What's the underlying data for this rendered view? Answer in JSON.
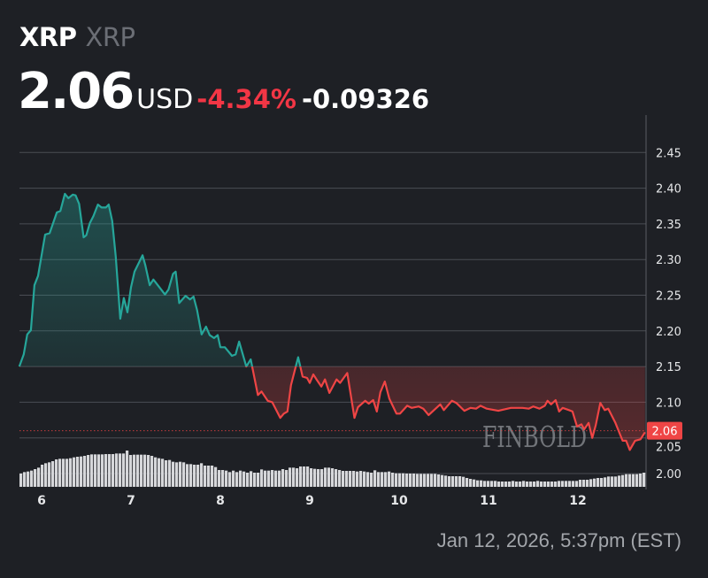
{
  "header": {
    "symbol": "XRP",
    "name": "XRP",
    "price": "2.06",
    "currency": "USD",
    "change_percent": "-4.34%",
    "change_abs": "-0.09326"
  },
  "timestamp": "Jan 12, 2026, 5:37pm (EST)",
  "watermark": "FINBOLD",
  "colors": {
    "background": "#1e2025",
    "up": "#26a69a",
    "down": "#ef4545",
    "grid": "#4a4d54",
    "volume": "#d6d7da"
  },
  "chart_data": {
    "type": "line",
    "title": "",
    "xlabel": "",
    "ylabel": "",
    "x_unit": "day of month (January 2026)",
    "xlim": [
      5.75,
      12.77
    ],
    "ylim": [
      2.0,
      2.47
    ],
    "x_ticks": [
      "6",
      "7",
      "8",
      "9",
      "10",
      "11",
      "12"
    ],
    "y_ticks": [
      "2.00",
      "2.05",
      "2.10",
      "2.15",
      "2.20",
      "2.25",
      "2.30",
      "2.35",
      "2.40",
      "2.45"
    ],
    "grid": true,
    "reference_price": 2.15,
    "current_price_label": "2.06",
    "current_price": 2.06,
    "x": [
      5.75,
      5.8,
      5.84,
      5.88,
      5.92,
      5.96,
      6.04,
      6.09,
      6.17,
      6.21,
      6.26,
      6.3,
      6.35,
      6.38,
      6.42,
      6.47,
      6.5,
      6.54,
      6.58,
      6.63,
      6.67,
      6.72,
      6.75,
      6.79,
      6.83,
      6.88,
      6.92,
      6.96,
      7.0,
      7.04,
      7.13,
      7.16,
      7.21,
      7.25,
      7.3,
      7.38,
      7.42,
      7.47,
      7.5,
      7.54,
      7.61,
      7.66,
      7.7,
      7.74,
      7.79,
      7.84,
      7.88,
      7.93,
      7.97,
      8.0,
      8.05,
      8.13,
      8.17,
      8.21,
      8.29,
      8.34,
      8.42,
      8.46,
      8.53,
      8.58,
      8.67,
      8.71,
      8.75,
      8.79,
      8.87,
      8.92,
      8.97,
      9.0,
      9.04,
      9.08,
      9.13,
      9.17,
      9.22,
      9.3,
      9.34,
      9.42,
      9.5,
      9.54,
      9.62,
      9.66,
      9.71,
      9.75,
      9.79,
      9.84,
      9.89,
      9.97,
      10.01,
      10.09,
      10.14,
      10.22,
      10.27,
      10.33,
      10.39,
      10.46,
      10.5,
      10.59,
      10.64,
      10.73,
      10.8,
      10.86,
      10.91,
      10.98,
      11.11,
      11.25,
      11.38,
      11.45,
      11.5,
      11.57,
      11.63,
      11.66,
      11.7,
      11.75,
      11.79,
      11.83,
      11.9,
      11.94,
      11.99,
      12.04,
      12.07,
      12.12,
      12.16,
      12.2,
      12.25,
      12.3,
      12.34,
      12.42,
      12.5,
      12.54,
      12.58,
      12.64,
      12.7,
      12.75
    ],
    "y": [
      2.15,
      2.167,
      2.195,
      2.201,
      2.264,
      2.277,
      2.335,
      2.337,
      2.366,
      2.368,
      2.392,
      2.386,
      2.391,
      2.39,
      2.378,
      2.331,
      2.334,
      2.351,
      2.361,
      2.377,
      2.373,
      2.373,
      2.377,
      2.354,
      2.304,
      2.217,
      2.246,
      2.226,
      2.261,
      2.283,
      2.306,
      2.292,
      2.264,
      2.272,
      2.264,
      2.251,
      2.258,
      2.28,
      2.283,
      2.239,
      2.249,
      2.244,
      2.248,
      2.229,
      2.195,
      2.206,
      2.194,
      2.19,
      2.194,
      2.177,
      2.177,
      2.165,
      2.167,
      2.185,
      2.15,
      2.16,
      2.11,
      2.115,
      2.102,
      2.1,
      2.078,
      2.084,
      2.087,
      2.124,
      2.163,
      2.136,
      2.134,
      2.127,
      2.139,
      2.131,
      2.122,
      2.132,
      2.113,
      2.132,
      2.127,
      2.141,
      2.078,
      2.093,
      2.102,
      2.098,
      2.103,
      2.087,
      2.114,
      2.129,
      2.105,
      2.084,
      2.084,
      2.095,
      2.092,
      2.094,
      2.091,
      2.082,
      2.089,
      2.097,
      2.089,
      2.102,
      2.099,
      2.088,
      2.092,
      2.091,
      2.095,
      2.091,
      2.088,
      2.092,
      2.092,
      2.091,
      2.094,
      2.091,
      2.095,
      2.102,
      2.097,
      2.103,
      2.087,
      2.092,
      2.089,
      2.087,
      2.066,
      2.069,
      2.062,
      2.071,
      2.05,
      2.068,
      2.099,
      2.089,
      2.091,
      2.071,
      2.046,
      2.046,
      2.033,
      2.046,
      2.048,
      2.058
    ],
    "volume_relative": [
      45,
      50,
      52,
      55,
      60,
      65,
      75,
      80,
      83,
      87,
      93,
      95,
      95,
      95,
      97,
      100,
      102,
      103,
      105,
      108,
      110,
      110,
      110,
      110,
      111,
      111,
      111,
      113,
      113,
      113,
      123,
      108,
      109,
      109,
      109,
      109,
      108,
      105,
      100,
      97,
      95,
      90,
      91,
      85,
      83,
      85,
      83,
      77,
      77,
      75,
      75,
      80,
      72,
      72,
      72,
      67,
      57,
      57,
      55,
      50,
      55,
      50,
      55,
      52,
      48,
      53,
      48,
      48,
      59,
      55,
      55,
      57,
      55,
      55,
      60,
      57,
      65,
      65,
      63,
      69,
      69,
      69,
      63,
      61,
      60,
      60,
      65,
      65,
      63,
      60,
      57,
      54,
      54,
      54,
      54,
      52,
      54,
      52,
      50,
      48,
      56,
      50,
      50,
      50,
      52,
      48,
      46,
      46,
      46,
      45,
      45,
      45,
      44,
      44,
      44,
      44,
      44,
      44,
      42,
      40,
      38,
      36,
      36,
      36,
      36,
      34,
      30,
      27,
      25,
      22,
      22,
      20,
      20,
      20,
      20,
      18,
      18,
      18,
      18,
      20,
      18,
      18,
      20,
      18,
      18,
      18,
      20,
      18,
      18,
      18,
      18,
      18,
      20,
      20,
      20,
      20,
      20,
      20,
      24,
      24,
      24,
      26,
      28,
      30,
      30,
      32,
      35,
      35,
      35,
      38,
      40,
      43,
      43,
      43,
      43,
      45,
      48
    ]
  }
}
